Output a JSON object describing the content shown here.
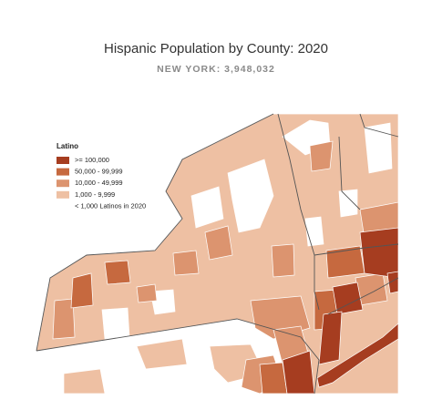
{
  "title": "Hispanic Population by County: 2020",
  "subtitle": "NEW YORK: 3,948,032",
  "legend": {
    "title": "Latino",
    "items": [
      {
        "label": ">= 100,000",
        "color": "#a63d20"
      },
      {
        "label": "50,000 - 99,999",
        "color": "#c6693f"
      },
      {
        "label": "10,000 - 49,999",
        "color": "#dc946f"
      },
      {
        "label": "1,000 - 9,999",
        "color": "#eec0a3"
      },
      {
        "label": "< 1,000 Latinos in 2020",
        "color": "#ffffff"
      }
    ]
  }
}
